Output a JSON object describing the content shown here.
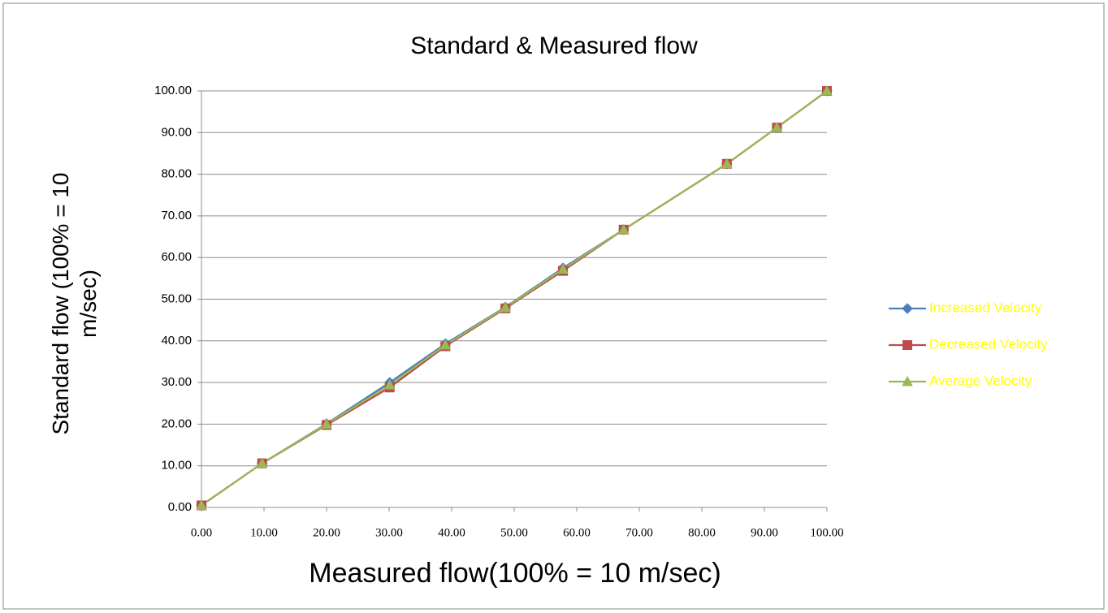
{
  "chart_data": {
    "type": "line",
    "title": "Standard & Measured flow",
    "xlabel": "Measured flow(100% = 10 m/sec)",
    "ylabel": "Standard flow (100% = 10 m/sec)",
    "x": [
      0,
      9.7,
      20,
      30.1,
      39,
      48.6,
      57.8,
      67.5,
      84,
      92,
      100
    ],
    "series": [
      {
        "name": "Increased Velocity",
        "color": "#4a7ebb",
        "marker": "diamond",
        "values": [
          0.5,
          10.6,
          20.1,
          30,
          39.3,
          48.1,
          57.5,
          66.7,
          82.5,
          91.2,
          100
        ]
      },
      {
        "name": "Decreased Velocity",
        "color": "#be4b48",
        "marker": "square",
        "values": [
          0.5,
          10.6,
          19.8,
          28.8,
          38.7,
          47.8,
          56.8,
          66.7,
          82.5,
          91.2,
          100
        ]
      },
      {
        "name": "Average Velocity",
        "color": "#98b954",
        "marker": "triangle",
        "values": [
          0.5,
          10.6,
          20,
          29.4,
          39,
          48,
          57.2,
          66.7,
          82.5,
          91.2,
          100
        ]
      }
    ],
    "xlim": [
      0,
      100
    ],
    "xticks": [
      {
        "value": 0,
        "label": "0.00"
      },
      {
        "value": 10,
        "label": "10.00"
      },
      {
        "value": 20,
        "label": "20.00"
      },
      {
        "value": 30,
        "label": "30.00"
      },
      {
        "value": 40,
        "label": "40.00"
      },
      {
        "value": 50,
        "label": "50.00"
      },
      {
        "value": 60,
        "label": "60.00"
      },
      {
        "value": 70,
        "label": "70.00"
      },
      {
        "value": 80,
        "label": "80.00"
      },
      {
        "value": 90,
        "label": "90.00"
      },
      {
        "value": 100,
        "label": "100.00"
      }
    ],
    "ylim": [
      0,
      100
    ],
    "yticks": [
      {
        "value": 0,
        "label": "0.00"
      },
      {
        "value": 10,
        "label": "10.00"
      },
      {
        "value": 20,
        "label": "20.00"
      },
      {
        "value": 30,
        "label": "30.00"
      },
      {
        "value": 40,
        "label": "40.00"
      },
      {
        "value": 50,
        "label": "50.00"
      },
      {
        "value": 60,
        "label": "60.00"
      },
      {
        "value": 70,
        "label": "70.00"
      },
      {
        "value": 80,
        "label": "80.00"
      },
      {
        "value": 90,
        "label": "90.00"
      },
      {
        "value": 100,
        "label": "100.00"
      }
    ],
    "grid": true,
    "legend": "right",
    "legend_text_color": "#ffff00"
  }
}
